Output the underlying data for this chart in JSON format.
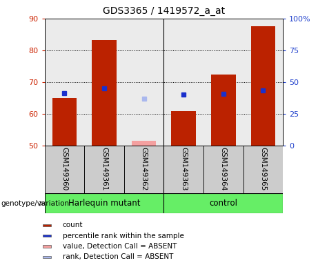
{
  "title": "GDS3365 / 1419572_a_at",
  "samples": [
    "GSM149360",
    "GSM149361",
    "GSM149362",
    "GSM149363",
    "GSM149364",
    "GSM149365"
  ],
  "count_values": [
    65.0,
    83.3,
    null,
    61.0,
    72.3,
    87.5
  ],
  "count_absent": [
    null,
    null,
    51.5,
    null,
    null,
    null
  ],
  "rank_values": [
    66.5,
    68.0,
    null,
    66.0,
    66.3,
    67.5
  ],
  "rank_absent": [
    null,
    null,
    64.8,
    null,
    null,
    null
  ],
  "ylim_left": [
    50,
    90
  ],
  "ylim_right": [
    0,
    100
  ],
  "yticks_left": [
    50,
    60,
    70,
    80,
    90
  ],
  "yticks_right": [
    0,
    25,
    50,
    75,
    100
  ],
  "bar_color_present": "#bb2200",
  "bar_color_absent": "#f4a0a0",
  "rank_color_present": "#1a30cc",
  "rank_color_absent": "#aab8ee",
  "bar_bottom": 50,
  "bar_width": 0.28,
  "rank_marker_size": 5,
  "group1_label": "Harlequin mutant",
  "group2_label": "control",
  "legend_items": [
    {
      "label": "count",
      "color": "#bb2200"
    },
    {
      "label": "percentile rank within the sample",
      "color": "#1a30cc"
    },
    {
      "label": "value, Detection Call = ABSENT",
      "color": "#f4a0a0"
    },
    {
      "label": "rank, Detection Call = ABSENT",
      "color": "#aab8ee"
    }
  ],
  "left_axis_color": "#cc2200",
  "right_axis_color": "#2040cc",
  "background_plot": "#ebebeb",
  "background_label": "#cccccc",
  "background_group": "#66ee66"
}
